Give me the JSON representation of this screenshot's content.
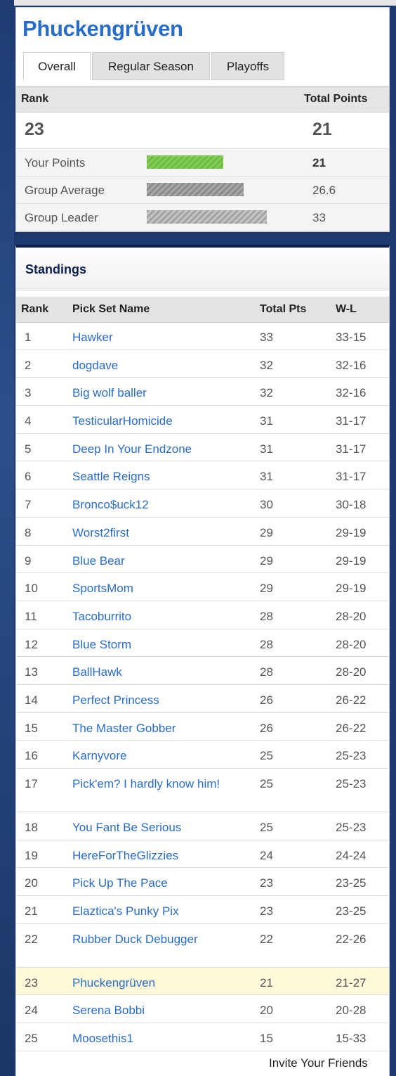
{
  "group": {
    "title": "Phuckengrüven",
    "tabs": [
      "Overall",
      "Regular Season",
      "Playoffs"
    ],
    "active_tab": "Overall"
  },
  "summary": {
    "rank_label": "Rank",
    "total_points_label": "Total Points",
    "rank": "23",
    "total_points": "21",
    "rows": [
      {
        "label": "Your Points",
        "value": "21",
        "bar_fraction": 0.636
      },
      {
        "label": "Group Average",
        "value": "26.6",
        "bar_fraction": 0.806
      },
      {
        "label": "Group Leader",
        "value": "33",
        "bar_fraction": 1.0
      }
    ]
  },
  "standings": {
    "title": "Standings",
    "columns": [
      "Rank",
      "Pick Set Name",
      "Total Pts",
      "W-L"
    ],
    "rows": [
      {
        "rank": "1",
        "name": "Hawker",
        "pts": "33",
        "wl": "33-15"
      },
      {
        "rank": "2",
        "name": "dogdave",
        "pts": "32",
        "wl": "32-16"
      },
      {
        "rank": "3",
        "name": "Big wolf baller",
        "pts": "32",
        "wl": "32-16"
      },
      {
        "rank": "4",
        "name": "TesticularHomicide",
        "pts": "31",
        "wl": "31-17"
      },
      {
        "rank": "5",
        "name": "Deep In Your Endzone",
        "pts": "31",
        "wl": "31-17"
      },
      {
        "rank": "6",
        "name": "Seattle Reigns",
        "pts": "31",
        "wl": "31-17"
      },
      {
        "rank": "7",
        "name": "Bronco$uck12",
        "pts": "30",
        "wl": "30-18"
      },
      {
        "rank": "8",
        "name": "Worst2first",
        "pts": "29",
        "wl": "29-19"
      },
      {
        "rank": "9",
        "name": "Blue Bear",
        "pts": "29",
        "wl": "29-19"
      },
      {
        "rank": "10",
        "name": "SportsMom",
        "pts": "29",
        "wl": "29-19"
      },
      {
        "rank": "11",
        "name": "Tacoburrito",
        "pts": "28",
        "wl": "28-20"
      },
      {
        "rank": "12",
        "name": "Blue Storm",
        "pts": "28",
        "wl": "28-20"
      },
      {
        "rank": "13",
        "name": "BallHawk",
        "pts": "28",
        "wl": "28-20"
      },
      {
        "rank": "14",
        "name": "Perfect Princess",
        "pts": "26",
        "wl": "26-22"
      },
      {
        "rank": "15",
        "name": "The Master Gobber",
        "pts": "26",
        "wl": "26-22"
      },
      {
        "rank": "16",
        "name": "Karnyvore",
        "pts": "25",
        "wl": "25-23"
      },
      {
        "rank": "17",
        "name": "Pick'em? I hardly know him!",
        "pts": "25",
        "wl": "25-23"
      },
      {
        "rank": "18",
        "name": "You Fant Be Serious",
        "pts": "25",
        "wl": "25-23"
      },
      {
        "rank": "19",
        "name": "HereForTheGlizzies",
        "pts": "24",
        "wl": "24-24"
      },
      {
        "rank": "20",
        "name": "Pick Up The Pace",
        "pts": "23",
        "wl": "23-25"
      },
      {
        "rank": "21",
        "name": "Elaztica's Punky Pix",
        "pts": "23",
        "wl": "23-25"
      },
      {
        "rank": "22",
        "name": "Rubber Duck Debugger",
        "pts": "22",
        "wl": "22-26"
      },
      {
        "rank": "23",
        "name": "Phuckengrüven",
        "pts": "21",
        "wl": "21-27",
        "highlight": true
      },
      {
        "rank": "24",
        "name": "Serena Bobbi",
        "pts": "20",
        "wl": "20-28"
      },
      {
        "rank": "25",
        "name": "Moosethis1",
        "pts": "15",
        "wl": "15-33"
      }
    ],
    "invite_label": "Invite Your Friends"
  },
  "colors": {
    "link": "#2a6dc9",
    "header_navy": "#0b1f4f",
    "bar_green": "#6fbe44",
    "highlight_row": "#fdf9d9"
  }
}
